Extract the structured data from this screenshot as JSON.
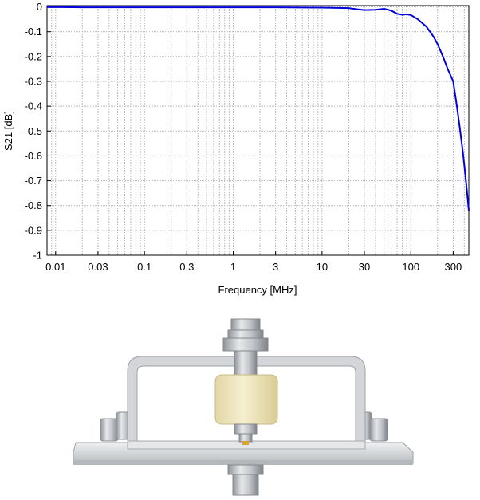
{
  "chart_data": {
    "type": "line",
    "xscale": "log",
    "xlabel": "Frequency [MHz]",
    "ylabel": "S21 [dB]",
    "xlim": [
      0.008,
      450
    ],
    "ylim": [
      -1,
      0.005
    ],
    "grid": true,
    "x_tick_values": [
      0.01,
      0.03,
      0.1,
      0.3,
      1,
      3,
      10,
      30,
      100,
      300
    ],
    "x_tick_labels": [
      "0.01",
      "0.03",
      "0.1",
      "0.3",
      "1",
      "3",
      "10",
      "30",
      "100",
      "300"
    ],
    "y_tick_values": [
      0,
      -0.1,
      -0.2,
      -0.3,
      -0.4,
      -0.5,
      -0.6,
      -0.7,
      -0.8,
      -0.9,
      -1
    ],
    "y_tick_labels": [
      "0",
      "-0.1",
      "-0.2",
      "-0.3",
      "-0.4",
      "-0.5",
      "-0.6",
      "-0.7",
      "-0.8",
      "-0.9",
      "-1"
    ],
    "series": [
      {
        "color": "#0000dd",
        "x": [
          0.008,
          0.012,
          0.02,
          0.04,
          0.07,
          0.1,
          0.3,
          1,
          3,
          10,
          20,
          25,
          30,
          40,
          50,
          60,
          70,
          80,
          90,
          100,
          120,
          150,
          180,
          200,
          230,
          260,
          300,
          330,
          360,
          390,
          420,
          450
        ],
        "y": [
          -0.001,
          -0.001,
          -0.002,
          -0.002,
          -0.002,
          -0.002,
          -0.002,
          -0.002,
          -0.002,
          -0.003,
          -0.005,
          -0.01,
          -0.013,
          -0.012,
          -0.008,
          -0.015,
          -0.028,
          -0.032,
          -0.03,
          -0.033,
          -0.05,
          -0.08,
          -0.12,
          -0.15,
          -0.2,
          -0.25,
          -0.3,
          -0.4,
          -0.5,
          -0.6,
          -0.71,
          -0.82
        ]
      }
    ]
  },
  "photo": {
    "colors": {
      "frame": "#cfd1d4",
      "frame_edge": "#9ea2a7",
      "base": "#dcdee0",
      "insulator": "#efe6bc",
      "connector": "#a7abb0",
      "gold_pin": "#d4a531"
    }
  }
}
